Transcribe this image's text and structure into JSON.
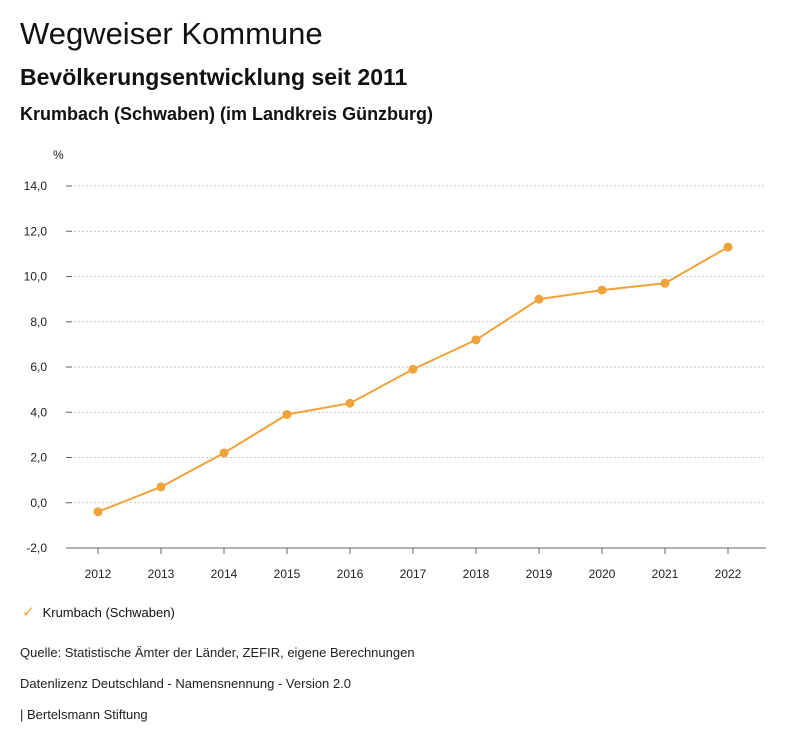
{
  "header": {
    "title": "Wegweiser Kommune",
    "subtitle": "Bevölkerungsentwicklung seit 2011",
    "region": "Krumbach (Schwaben) (im Landkreis Günzburg)"
  },
  "chart_data": {
    "type": "line",
    "ylabel": "%",
    "x": [
      "2012",
      "2013",
      "2014",
      "2015",
      "2016",
      "2017",
      "2018",
      "2019",
      "2020",
      "2021",
      "2022"
    ],
    "series": [
      {
        "name": "Krumbach (Schwaben)",
        "values": [
          -0.4,
          0.7,
          2.2,
          3.9,
          4.4,
          5.9,
          7.2,
          9.0,
          9.4,
          9.7,
          11.3
        ],
        "color": "#F0A23B"
      }
    ],
    "ylim": [
      -2,
      14
    ],
    "yticks": [
      -2,
      0,
      2,
      4,
      6,
      8,
      10,
      12,
      14
    ],
    "ytick_labels": [
      "-2,0",
      "0,0",
      "2,0",
      "4,0",
      "6,0",
      "8,0",
      "10,0",
      "12,0",
      "14,0"
    ],
    "grid": true,
    "legend_position": "bottom-left"
  },
  "legend": {
    "icon": "check-icon",
    "label": "Krumbach (Schwaben)"
  },
  "footer": {
    "source": "Quelle: Statistische Ämter der Länder, ZEFIR, eigene Berechnungen",
    "license": "Datenlizenz Deutschland - Namensnennung - Version 2.0",
    "brand": "| Bertelsmann Stiftung"
  }
}
